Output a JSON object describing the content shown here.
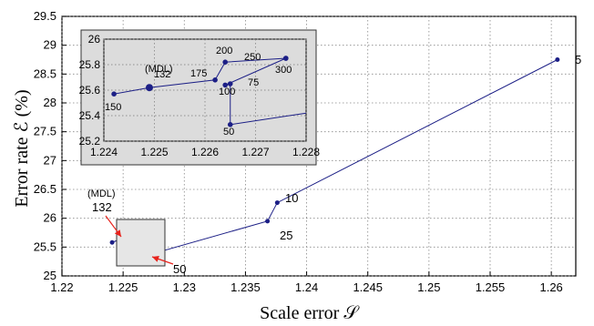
{
  "chart_data": {
    "type": "line",
    "xlabel": "Scale error 𝒮",
    "ylabel": "Error rate ℰ (%)",
    "xlim": [
      1.22,
      1.262
    ],
    "ylim": [
      25,
      29.5
    ],
    "xticks": [
      "1.22",
      "1.225",
      "1.23",
      "1.235",
      "1.24",
      "1.245",
      "1.25",
      "1.255",
      "1.26"
    ],
    "xtick_values": [
      1.22,
      1.225,
      1.23,
      1.235,
      1.24,
      1.245,
      1.25,
      1.255,
      1.26
    ],
    "yticks": [
      "25",
      "25.5",
      "26",
      "26.5",
      "27",
      "27.5",
      "28",
      "28.5",
      "29",
      "29.5"
    ],
    "ytick_values": [
      25,
      25.5,
      26,
      26.5,
      27,
      27.5,
      28,
      28.5,
      29,
      29.5
    ],
    "grid": true,
    "line_color": "#1c1f86",
    "arrow_color": "#e8231c",
    "series": [
      {
        "points": [
          {
            "label": "5",
            "x": 1.2605,
            "y": 28.75
          },
          {
            "label": "10",
            "x": 1.2376,
            "y": 26.27
          },
          {
            "label": "25",
            "x": 1.2368,
            "y": 25.95
          },
          {
            "label": "50",
            "x": 1.2265,
            "y": 25.33
          },
          {
            "label": "75",
            "x": 1.2265,
            "y": 25.72
          },
          {
            "label": "100",
            "x": 1.2262,
            "y": 25.71
          },
          {
            "label": "132",
            "x": 1.2249,
            "y": 25.65
          },
          {
            "label": "150",
            "x": 1.2241,
            "y": 25.58
          },
          {
            "label": "175",
            "x": 1.2262,
            "y": 25.75
          },
          {
            "label": "200",
            "x": 1.2263,
            "y": 25.83
          },
          {
            "label": "250",
            "x": 1.2276,
            "y": 25.87
          },
          {
            "label": "300",
            "x": 1.2276,
            "y": 25.87
          }
        ]
      }
    ],
    "annotations": {
      "mdl": "(MDL)",
      "mdl_value": "132",
      "label_5": "5",
      "label_10": "10",
      "label_25": "25",
      "label_50": "50"
    },
    "inset": {
      "xlim": [
        1.224,
        1.228
      ],
      "ylim": [
        25.2,
        26
      ],
      "xticks": [
        "1.224",
        "1.225",
        "1.226",
        "1.227",
        "1.228"
      ],
      "xtick_values": [
        1.224,
        1.225,
        1.226,
        1.227,
        1.228
      ],
      "yticks": [
        "25.2",
        "25.4",
        "25.6",
        "25.8",
        "26"
      ],
      "ytick_values": [
        25.2,
        25.4,
        25.6,
        25.8,
        26
      ],
      "points": [
        {
          "label": "150",
          "x": 1.2242,
          "y": 25.57
        },
        {
          "label": "132",
          "x": 1.2249,
          "y": 25.62
        },
        {
          "label": "175",
          "x": 1.2262,
          "y": 25.68
        },
        {
          "label": "200",
          "x": 1.2264,
          "y": 25.82
        },
        {
          "label": "250",
          "x": 1.2276,
          "y": 25.85
        },
        {
          "label": "300",
          "x": 1.2276,
          "y": 25.85
        },
        {
          "label": "100",
          "x": 1.2264,
          "y": 25.64
        },
        {
          "label": "75",
          "x": 1.2265,
          "y": 25.65
        },
        {
          "label": "50",
          "x": 1.2265,
          "y": 25.33
        }
      ],
      "labels": {
        "mdl": "(MDL)",
        "l132": "132",
        "l150": "150",
        "l175": "175",
        "l200": "200",
        "l250": "250",
        "l100": "100",
        "l75": "75",
        "l300": "300",
        "l50": "50"
      }
    }
  }
}
